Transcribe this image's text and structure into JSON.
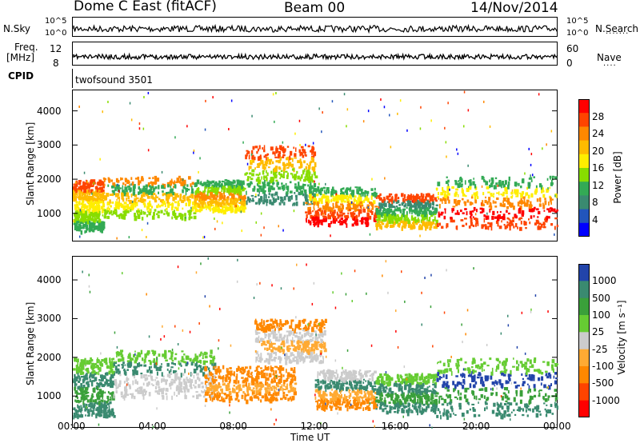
{
  "header": {
    "station": "Dome C East (fitACF)",
    "beam": "Beam 00",
    "date": "14/Nov/2014"
  },
  "strips": {
    "nsky_label": "N.Sky",
    "nsky_ticks": [
      "10^5",
      "10^0"
    ],
    "nsearch_label": "N.Search",
    "nsearch_ticks": [
      "10^5",
      "10^0"
    ],
    "freq_label_1": "Freq.",
    "freq_label_2": "[MHz]",
    "freq_ticks": [
      "12",
      "8"
    ],
    "nave_label": "Nave",
    "nave_ticks": [
      "60",
      "0"
    ],
    "cpid_label": "CPID",
    "cpid_value": "twofsound 3501"
  },
  "chart_data": [
    {
      "type": "heatmap",
      "name": "power-panel",
      "ylabel": "Slant Range [km]",
      "y_ticks": [
        1000,
        2000,
        3000,
        4000
      ],
      "ylim": [
        200,
        4600
      ],
      "xlim": [
        0,
        24
      ],
      "colorbar_label": "Power [dB]",
      "colorbar_ticks": [
        "28",
        "24",
        "20",
        "16",
        "12",
        "8",
        "4"
      ],
      "colors": [
        "#ff0000",
        "#ff4400",
        "#ff8800",
        "#ffbb00",
        "#ffee00",
        "#88dd00",
        "#33aa55",
        "#3a8a70",
        "#2255bb",
        "#0000ff"
      ],
      "bands": [
        {
          "x0": 0.0,
          "x1": 1.5,
          "y0": 500,
          "y1": 2000,
          "c": [
            6,
            5,
            4,
            3,
            1
          ]
        },
        {
          "x0": 1.5,
          "x1": 6.0,
          "y0": 900,
          "y1": 2100,
          "c": [
            5,
            4,
            3,
            6,
            2
          ]
        },
        {
          "x0": 6.0,
          "x1": 8.5,
          "y0": 1100,
          "y1": 2000,
          "c": [
            4,
            3,
            2,
            5,
            6
          ]
        },
        {
          "x0": 8.5,
          "x1": 12.0,
          "y0": 1300,
          "y1": 3000,
          "c": [
            7,
            6,
            5,
            3,
            1
          ]
        },
        {
          "x0": 11.5,
          "x1": 15.0,
          "y0": 700,
          "y1": 1800,
          "c": [
            0,
            1,
            2,
            4,
            6
          ]
        },
        {
          "x0": 15.0,
          "x1": 18.0,
          "y0": 600,
          "y1": 1600,
          "c": [
            3,
            5,
            6,
            7,
            1
          ]
        },
        {
          "x0": 18.0,
          "x1": 24.0,
          "y0": 600,
          "y1": 2100,
          "c": [
            1,
            0,
            2,
            4,
            6
          ]
        }
      ]
    },
    {
      "type": "heatmap",
      "name": "velocity-panel",
      "ylabel": "Slant Range [km]",
      "y_ticks": [
        1000,
        2000,
        3000,
        4000
      ],
      "ylim": [
        200,
        4600
      ],
      "xlim": [
        0,
        24
      ],
      "x_ticks": [
        "00:00",
        "04:00",
        "08:00",
        "12:00",
        "16:00",
        "20:00",
        "00:00"
      ],
      "xlabel": "Time UT",
      "colorbar_label": "Velocity [m s⁻¹]",
      "colorbar_ticks": [
        "1000",
        "500",
        "100",
        "25",
        "-25",
        "-100",
        "-500",
        "-1000"
      ],
      "colors": [
        "#2244aa",
        "#3a8a70",
        "#3aa03a",
        "#66cc33",
        "#cccccc",
        "#ffaa33",
        "#ff8800",
        "#ff4400",
        "#ff0000"
      ],
      "bands": [
        {
          "x0": 0.0,
          "x1": 2.0,
          "y0": 500,
          "y1": 2000,
          "c": [
            1,
            2,
            1,
            3
          ]
        },
        {
          "x0": 2.0,
          "x1": 7.0,
          "y0": 1000,
          "y1": 2200,
          "c": [
            4,
            4,
            1,
            3
          ]
        },
        {
          "x0": 6.5,
          "x1": 11.0,
          "y0": 900,
          "y1": 1800,
          "c": [
            6,
            5,
            6,
            6
          ]
        },
        {
          "x0": 9.0,
          "x1": 12.5,
          "y0": 1900,
          "y1": 3000,
          "c": [
            4,
            5,
            4,
            6
          ]
        },
        {
          "x0": 12.0,
          "x1": 15.0,
          "y0": 700,
          "y1": 1700,
          "c": [
            6,
            5,
            1,
            4
          ]
        },
        {
          "x0": 15.0,
          "x1": 18.0,
          "y0": 600,
          "y1": 1600,
          "c": [
            1,
            2,
            1,
            3
          ]
        },
        {
          "x0": 18.0,
          "x1": 24.0,
          "y0": 500,
          "y1": 2000,
          "c": [
            1,
            2,
            0,
            3
          ]
        }
      ]
    }
  ]
}
